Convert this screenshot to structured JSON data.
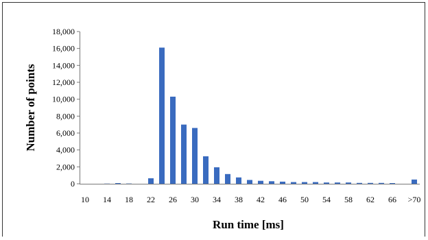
{
  "chart_data": {
    "type": "bar",
    "title": "",
    "xlabel": "Run time [ms]",
    "ylabel": "Number of points",
    "ylim": [
      0,
      18000
    ],
    "y_ticks": [
      "0",
      "2,000",
      "4,000",
      "6,000",
      "8,000",
      "10,000",
      "12,000",
      "14,000",
      "16,000",
      "18,000"
    ],
    "y_tick_values": [
      0,
      2000,
      4000,
      6000,
      8000,
      10000,
      12000,
      14000,
      16000,
      18000
    ],
    "x_tick_labels": [
      "10",
      "14",
      "18",
      "22",
      "26",
      "30",
      "34",
      "38",
      "42",
      "46",
      "50",
      "54",
      "58",
      "62",
      "66",
      ">70"
    ],
    "categories": [
      "10",
      "12",
      "14",
      "16",
      "18",
      "20",
      "22",
      "24",
      "26",
      "28",
      "30",
      "32",
      "34",
      "36",
      "38",
      "40",
      "42",
      "44",
      "46",
      "48",
      "50",
      "52",
      "54",
      "56",
      "58",
      "60",
      "62",
      "64",
      "66",
      "68",
      ">70"
    ],
    "values": [
      0,
      0,
      20,
      80,
      30,
      0,
      650,
      16100,
      10300,
      7000,
      6600,
      3250,
      1950,
      1150,
      750,
      450,
      350,
      300,
      250,
      200,
      200,
      200,
      150,
      150,
      150,
      100,
      100,
      100,
      80,
      0,
      500
    ],
    "bar_color": "#3a6bbf",
    "grid": false,
    "legend": "none"
  }
}
